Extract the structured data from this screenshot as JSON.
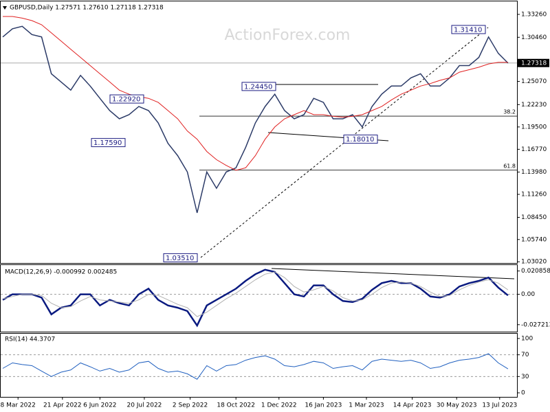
{
  "chart_data": [
    {
      "type": "line",
      "title": "GBPUSD,Daily  1.27571 1.27610 1.27118 1.27318",
      "watermark": "ActionForex.com",
      "x": [
        0,
        7,
        14,
        21,
        28,
        35,
        42,
        49,
        56,
        63,
        70,
        77,
        84,
        91,
        98,
        105,
        112,
        119,
        126,
        133,
        140,
        147,
        154,
        161,
        168,
        175,
        182,
        189,
        196,
        203,
        210,
        217,
        224,
        231,
        238,
        245,
        252,
        259,
        266,
        273,
        280,
        287,
        294,
        301,
        308,
        315,
        322,
        329,
        336,
        343,
        350,
        357,
        364
      ],
      "xlim": [
        0,
        368.5
      ],
      "xticks": [
        {
          "value": 11,
          "label": "8 Mar 2022"
        },
        {
          "value": 43,
          "label": "21 Apr 2022"
        },
        {
          "value": 70,
          "label": "6 Jun 2022"
        },
        {
          "value": 102,
          "label": "20 Jul 2022"
        },
        {
          "value": 135,
          "label": "2 Sep 2022"
        },
        {
          "value": 168,
          "label": "18 Oct 2022"
        },
        {
          "value": 199,
          "label": "1 Dec 2022"
        },
        {
          "value": 231,
          "label": "16 Jan 2023"
        },
        {
          "value": 262,
          "label": "1 Mar 2023"
        },
        {
          "value": 295,
          "label": "14 Apr 2023"
        },
        {
          "value": 327,
          "label": "30 May 2023"
        },
        {
          "value": 358,
          "label": "13 Jul 2023"
        }
      ],
      "ylim": [
        1.0287,
        1.3485
      ],
      "yticks": [
        {
          "value": 1.3326,
          "label": "1.33260"
        },
        {
          "value": 1.3046,
          "label": "1.30460"
        },
        {
          "value": 1.2507,
          "label": "1.25070"
        },
        {
          "value": 1.2223,
          "label": "1.22230"
        },
        {
          "value": 1.195,
          "label": "1.19500"
        },
        {
          "value": 1.1677,
          "label": "1.16770"
        },
        {
          "value": 1.1398,
          "label": "1.13980"
        },
        {
          "value": 1.1126,
          "label": "1.11260"
        },
        {
          "value": 1.0845,
          "label": "1.08450"
        },
        {
          "value": 1.0574,
          "label": "1.05740"
        },
        {
          "value": 1.0302,
          "label": "1.03020"
        }
      ],
      "last_price": {
        "value": 1.27318,
        "label": "1.27318"
      },
      "series": [
        {
          "color": "#2b3a67",
          "values": [
            1.305,
            1.315,
            1.318,
            1.308,
            1.305,
            1.26,
            1.25,
            1.24,
            1.258,
            1.245,
            1.23,
            1.215,
            1.205,
            1.21,
            1.22,
            1.215,
            1.2,
            1.175,
            1.16,
            1.14,
            1.09,
            1.14,
            1.12,
            1.14,
            1.145,
            1.17,
            1.2,
            1.22,
            1.235,
            1.215,
            1.205,
            1.21,
            1.23,
            1.225,
            1.205,
            1.205,
            1.21,
            1.195,
            1.22,
            1.235,
            1.245,
            1.245,
            1.255,
            1.26,
            1.245,
            1.245,
            1.255,
            1.27,
            1.27,
            1.28,
            1.305,
            1.285,
            1.273
          ]
        },
        {
          "color": "#e02020",
          "values": [
            1.33,
            1.33,
            1.328,
            1.325,
            1.32,
            1.31,
            1.3,
            1.29,
            1.28,
            1.27,
            1.26,
            1.25,
            1.24,
            1.235,
            1.232,
            1.23,
            1.225,
            1.215,
            1.205,
            1.19,
            1.18,
            1.165,
            1.155,
            1.148,
            1.142,
            1.145,
            1.16,
            1.18,
            1.195,
            1.205,
            1.21,
            1.215,
            1.21,
            1.21,
            1.208,
            1.207,
            1.208,
            1.21,
            1.215,
            1.22,
            1.228,
            1.235,
            1.24,
            1.245,
            1.248,
            1.252,
            1.255,
            1.262,
            1.265,
            1.268,
            1.272,
            1.274,
            1.274
          ]
        }
      ],
      "annotations": [
        {
          "value": 1.3141,
          "label": "1.31410"
        },
        {
          "value": 1.2445,
          "label": "1.24450"
        },
        {
          "value": 1.2292,
          "label": "1.22920"
        },
        {
          "value": 1.1759,
          "label": "1.17590"
        },
        {
          "value": 1.1801,
          "label": "1.18010"
        },
        {
          "value": 1.0351,
          "label": "1.03510"
        }
      ],
      "levels": [
        {
          "value": 1.2082,
          "label": "38.2"
        },
        {
          "value": 1.1422,
          "label": "61.8"
        }
      ]
    },
    {
      "type": "line",
      "title": "MACD(12,26,9) -0.000992 0.002485",
      "ylim": [
        -0.03347,
        0.02617
      ],
      "yticks": [
        {
          "value": 0.020858,
          "label": "0.020858"
        },
        {
          "value": 0,
          "label": "0.00"
        },
        {
          "value": -0.027213,
          "label": "-0.027213"
        }
      ],
      "series": [
        {
          "color": "#0a1a80",
          "values": [
            -0.005,
            0,
            0,
            0,
            -0.003,
            -0.018,
            -0.012,
            -0.01,
            0,
            0,
            -0.01,
            -0.005,
            -0.008,
            -0.01,
            0,
            0.005,
            -0.005,
            -0.01,
            -0.012,
            -0.015,
            -0.028,
            -0.01,
            -0.005,
            0,
            0.005,
            0.012,
            0.018,
            0.022,
            0.02,
            0.01,
            0,
            -0.002,
            0.008,
            0.008,
            0,
            -0.006,
            -0.007,
            -0.004,
            0.004,
            0.01,
            0.012,
            0.01,
            0.01,
            0.005,
            -0.002,
            -0.003,
            0,
            0.007,
            0.01,
            0.012,
            0.015,
            0.006,
            -0.001
          ]
        },
        {
          "color": "#b0b0b0",
          "values": [
            -0.004,
            -0.002,
            0,
            0,
            -0.001,
            -0.008,
            -0.012,
            -0.011,
            -0.006,
            -0.002,
            -0.005,
            -0.006,
            -0.007,
            -0.008,
            -0.005,
            0,
            -0.001,
            -0.005,
            -0.009,
            -0.012,
            -0.02,
            -0.016,
            -0.01,
            -0.004,
            0.001,
            0.007,
            0.013,
            0.018,
            0.02,
            0.015,
            0.007,
            0.002,
            0.004,
            0.007,
            0.003,
            -0.003,
            -0.006,
            -0.005,
            0,
            0.006,
            0.01,
            0.011,
            0.01,
            0.007,
            0.002,
            -0.002,
            -0.001,
            0.004,
            0.008,
            0.011,
            0.013,
            0.01,
            0.004
          ]
        }
      ]
    },
    {
      "type": "line",
      "title": "RSI(14) 44.3707",
      "ylim": [
        -7.5,
        108.75
      ],
      "yticks": [
        100,
        70,
        30,
        0
      ],
      "series": [
        {
          "color": "#1f5fbf",
          "values": [
            45,
            55,
            52,
            50,
            40,
            30,
            38,
            42,
            55,
            48,
            40,
            45,
            38,
            42,
            55,
            58,
            45,
            38,
            40,
            35,
            25,
            50,
            40,
            50,
            52,
            60,
            65,
            68,
            62,
            50,
            48,
            52,
            58,
            55,
            45,
            48,
            50,
            42,
            58,
            62,
            60,
            58,
            60,
            55,
            45,
            48,
            55,
            60,
            62,
            65,
            72,
            55,
            44
          ]
        }
      ]
    }
  ]
}
